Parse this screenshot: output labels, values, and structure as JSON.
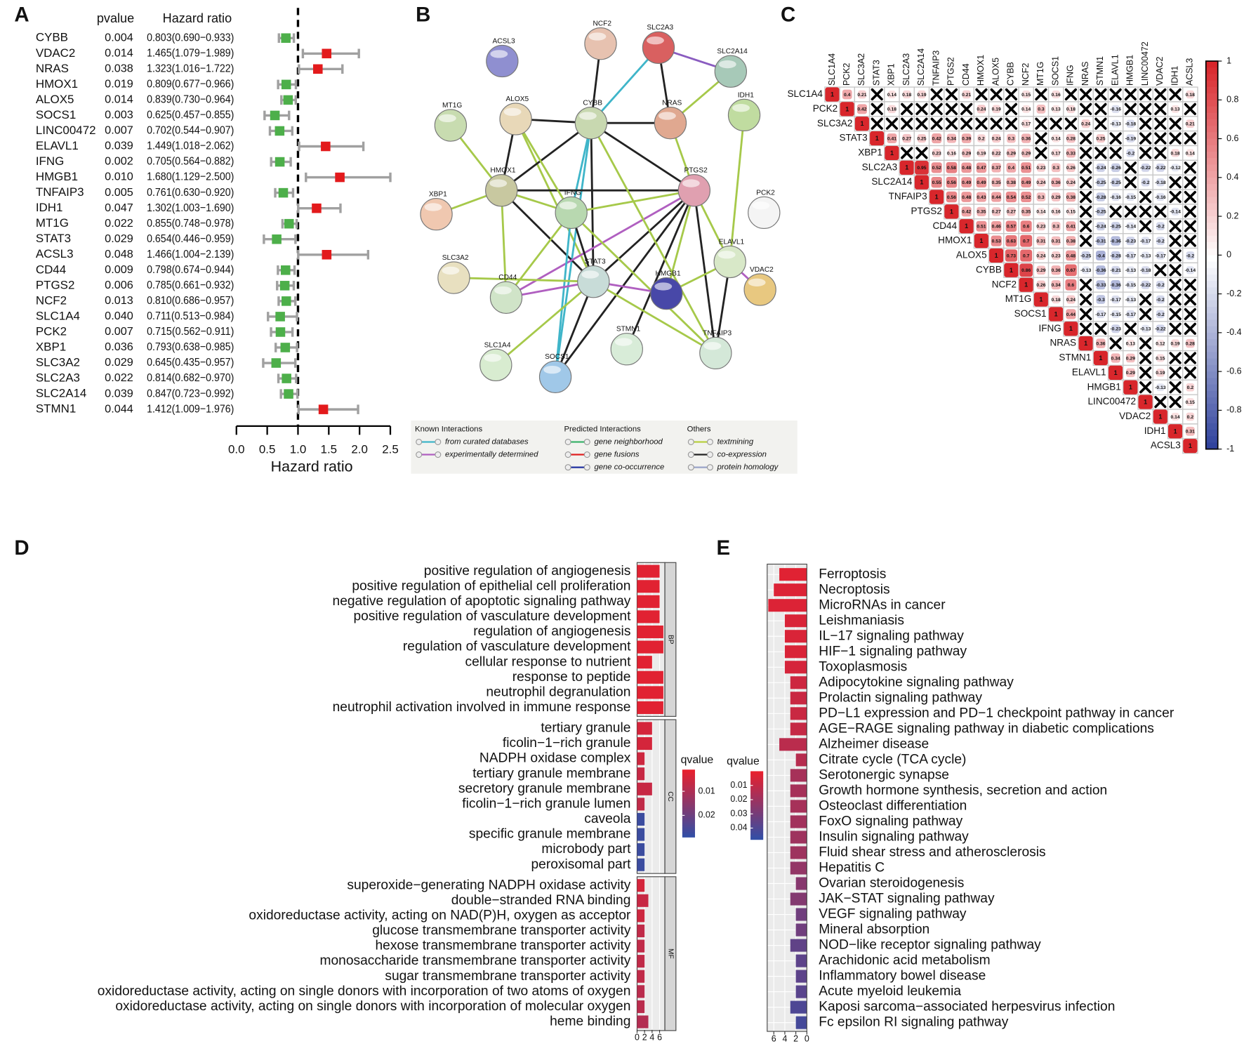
{
  "panels": [
    "A",
    "B",
    "C",
    "D",
    "E"
  ],
  "network": {
    "nodes": [
      "ACSL3",
      "NCF2",
      "SLC2A3",
      "SLC2A14",
      "MT1G",
      "ALOX5",
      "CYBB",
      "NRAS",
      "IDH1",
      "HMOX1",
      "PTGS2",
      "XBP1",
      "IFNG",
      "PCK2",
      "ELAVL1",
      "SLC3A2",
      "CD44",
      "STAT3",
      "HMGB1",
      "VDAC2",
      "STMN1",
      "TNFAIP3",
      "SLC1A4",
      "SOCS1"
    ],
    "legend": [
      {
        "title": "Known Interactions",
        "items": [
          "from curated databases",
          "experimentally determined"
        ]
      },
      {
        "title": "Predicted Interactions",
        "items": [
          "gene neighborhood",
          "gene fusions",
          "gene co-occurrence"
        ]
      },
      {
        "title": "Others",
        "items": [
          "textmining",
          "co-expression",
          "protein homology"
        ]
      }
    ]
  },
  "chart_data": [
    {
      "type": "forest",
      "columns": [
        "pvalue",
        "Hazard ratio"
      ],
      "genes": [
        "CYBB",
        "VDAC2",
        "NRAS",
        "HMOX1",
        "ALOX5",
        "SOCS1",
        "LINC00472",
        "ELAVL1",
        "IFNG",
        "HMGB1",
        "TNFAIP3",
        "IDH1",
        "MT1G",
        "STAT3",
        "ACSL3",
        "CD44",
        "PTGS2",
        "NCF2",
        "SLC1A4",
        "PCK2",
        "XBP1",
        "SLC3A2",
        "SLC2A3",
        "SLC2A14",
        "STMN1"
      ],
      "pvalues": [
        "0.004",
        "0.014",
        "0.038",
        "0.019",
        "0.014",
        "0.003",
        "0.007",
        "0.039",
        "0.002",
        "0.010",
        "0.005",
        "0.047",
        "0.022",
        "0.029",
        "0.048",
        "0.009",
        "0.006",
        "0.013",
        "0.040",
        "0.007",
        "0.036",
        "0.029",
        "0.022",
        "0.039",
        "0.044"
      ],
      "hr": [
        0.803,
        1.465,
        1.323,
        0.809,
        0.839,
        0.625,
        0.702,
        1.449,
        0.705,
        1.68,
        0.761,
        1.302,
        0.855,
        0.654,
        1.466,
        0.798,
        0.785,
        0.81,
        0.711,
        0.715,
        0.793,
        0.645,
        0.814,
        0.847,
        1.412
      ],
      "lower": [
        0.69,
        1.079,
        1.016,
        0.677,
        0.73,
        0.457,
        0.544,
        1.018,
        0.564,
        1.129,
        0.63,
        1.003,
        0.748,
        0.446,
        1.004,
        0.674,
        0.661,
        0.686,
        0.513,
        0.562,
        0.638,
        0.435,
        0.682,
        0.723,
        1.009
      ],
      "upper": [
        0.933,
        1.989,
        1.722,
        0.966,
        0.964,
        0.855,
        0.907,
        2.062,
        0.882,
        2.5,
        0.92,
        1.69,
        0.978,
        0.959,
        2.139,
        0.944,
        0.932,
        0.957,
        0.984,
        0.911,
        0.985,
        0.957,
        0.97,
        0.992,
        1.976
      ],
      "hr_labels": [
        "0.803(0.690−0.933)",
        "1.465(1.079−1.989)",
        "1.323(1.016−1.722)",
        "0.809(0.677−0.966)",
        "0.839(0.730−0.964)",
        "0.625(0.457−0.855)",
        "0.702(0.544−0.907)",
        "1.449(1.018−2.062)",
        "0.705(0.564−0.882)",
        "1.680(1.129−2.500)",
        "0.761(0.630−0.920)",
        "1.302(1.003−1.690)",
        "0.855(0.748−0.978)",
        "0.654(0.446−0.959)",
        "1.466(1.004−2.139)",
        "0.798(0.674−0.944)",
        "0.785(0.661−0.932)",
        "0.810(0.686−0.957)",
        "0.711(0.513−0.984)",
        "0.715(0.562−0.911)",
        "0.793(0.638−0.985)",
        "0.645(0.435−0.957)",
        "0.814(0.682−0.970)",
        "0.847(0.723−0.992)",
        "1.412(1.009−1.976)"
      ],
      "xlim": [
        0,
        2.5
      ],
      "xticks": [
        {
          "value": 0,
          "label": "0.0"
        },
        0.5,
        {
          "value": 1,
          "label": "1.0"
        },
        1.5,
        {
          "value": 2,
          "label": "2.0"
        },
        2.5
      ],
      "xlabel": "Hazard ratio",
      "reference": 1,
      "colors": {
        "above": "#e31a1c",
        "below": "#4daf4a",
        "whisker": "#a0a0a0"
      }
    },
    {
      "type": "heatmap",
      "labels": [
        "SLC1A4",
        "PCK2",
        "SLC3A2",
        "STAT3",
        "XBP1",
        "SLC2A3",
        "SLC2A14",
        "TNFAIP3",
        "PTGS2",
        "CD44",
        "HMOX1",
        "ALOX5",
        "CYBB",
        "NCF2",
        "MT1G",
        "SOCS1",
        "IFNG",
        "NRAS",
        "STMN1",
        "ELAVL1",
        "HMGB1",
        "LINC00472",
        "VDAC2",
        "IDH1",
        "ACSL3"
      ],
      "rows": [
        [
          1,
          0.4,
          0.21,
          null,
          0.14,
          0.18,
          0.19,
          null,
          null,
          0.21,
          null,
          null,
          null,
          0.15,
          null,
          0.16,
          null,
          null,
          null,
          null,
          null,
          null,
          null,
          null,
          0.18
        ],
        [
          1,
          0.42,
          null,
          0.18,
          null,
          null,
          null,
          null,
          null,
          0.24,
          0.19,
          null,
          0.14,
          0.3,
          0.13,
          0.18,
          null,
          null,
          -0.16,
          null,
          null,
          null,
          0.13,
          null
        ],
        [
          1,
          null,
          null,
          null,
          null,
          null,
          null,
          null,
          null,
          null,
          null,
          0.17,
          null,
          null,
          null,
          0.24,
          null,
          -0.13,
          -0.18,
          null,
          null,
          null,
          0.21
        ],
        [
          1,
          0.41,
          0.27,
          0.25,
          0.42,
          0.34,
          0.39,
          0.2,
          0.24,
          0.3,
          0.36,
          null,
          0.14,
          0.28,
          null,
          0.25,
          null,
          -0.19,
          null,
          null,
          null,
          null
        ],
        [
          1,
          null,
          null,
          0.23,
          0.16,
          0.29,
          0.19,
          0.22,
          0.29,
          0.29,
          null,
          0.17,
          0.33,
          null,
          null,
          null,
          -0.2,
          null,
          null,
          0.18,
          0.14
        ],
        [
          1,
          0.95,
          0.52,
          0.58,
          0.48,
          0.47,
          0.37,
          0.4,
          0.51,
          0.23,
          0.3,
          0.26,
          null,
          -0.24,
          -0.26,
          null,
          -0.22,
          -0.22,
          -0.12,
          null
        ],
        [
          1,
          0.55,
          0.56,
          0.49,
          0.49,
          0.35,
          0.38,
          0.49,
          0.24,
          0.36,
          0.24,
          null,
          -0.25,
          -0.25,
          null,
          -0.2,
          -0.18,
          null,
          null
        ],
        [
          1,
          0.56,
          0.48,
          0.43,
          0.44,
          0.54,
          0.52,
          0.3,
          0.29,
          0.38,
          null,
          -0.28,
          -0.16,
          -0.15,
          null,
          -0.16,
          null,
          null
        ],
        [
          1,
          0.42,
          0.35,
          0.27,
          0.27,
          0.35,
          0.14,
          0.16,
          0.15,
          null,
          -0.25,
          null,
          null,
          null,
          null,
          -0.14,
          null
        ],
        [
          1,
          0.51,
          0.46,
          0.57,
          0.6,
          0.23,
          0.3,
          0.41,
          null,
          -0.24,
          -0.25,
          -0.14,
          null,
          -0.2,
          null,
          null
        ],
        [
          1,
          0.53,
          0.63,
          0.7,
          0.31,
          0.31,
          0.38,
          null,
          -0.31,
          -0.36,
          -0.23,
          -0.17,
          -0.2,
          null,
          null
        ],
        [
          1,
          0.73,
          0.7,
          0.24,
          0.23,
          0.48,
          -0.25,
          -0.4,
          -0.28,
          -0.17,
          -0.13,
          -0.17,
          null,
          -0.2
        ],
        [
          1,
          0.86,
          0.29,
          0.36,
          0.67,
          -0.13,
          -0.36,
          -0.21,
          -0.13,
          -0.18,
          null,
          null,
          -0.14
        ],
        [
          1,
          0.26,
          0.34,
          0.6,
          null,
          -0.33,
          -0.36,
          -0.15,
          -0.22,
          -0.2,
          null,
          null
        ],
        [
          1,
          0.18,
          0.24,
          null,
          -0.3,
          -0.17,
          -0.13,
          null,
          -0.2,
          null,
          null
        ],
        [
          1,
          0.44,
          null,
          -0.17,
          -0.15,
          -0.17,
          null,
          -0.2,
          null,
          null
        ],
        [
          1,
          null,
          null,
          -0.23,
          null,
          -0.13,
          -0.22,
          null,
          null
        ],
        [
          1,
          0.36,
          null,
          0.13,
          null,
          0.12,
          0.19,
          0.28
        ],
        [
          1,
          0.34,
          0.29,
          null,
          0.15,
          null,
          null
        ],
        [
          1,
          0.29,
          null,
          0.19,
          null,
          null
        ],
        [
          1,
          null,
          -0.13,
          null,
          0.2
        ],
        [
          1,
          null,
          null,
          0.15
        ],
        [
          1,
          0.14,
          0.2
        ],
        [
          1,
          0.31
        ],
        [
          1
        ]
      ],
      "clim": [
        -1,
        1
      ],
      "cticks": [
        1,
        0.8,
        0.6,
        0.4,
        0.2,
        0,
        -0.2,
        -0.4,
        -0.6,
        -0.8,
        -1
      ],
      "colors": [
        "#2a3d9a",
        "#ffffff",
        "#d8262b"
      ]
    },
    {
      "type": "bar",
      "orientation": "horizontal",
      "facets": [
        {
          "name": "BP",
          "categories": [
            "positive regulation of angiogenesis",
            "positive regulation of epithelial cell proliferation",
            "negative regulation of apoptotic signaling pathway",
            "positive regulation of vasculature development",
            "regulation of angiogenesis",
            "regulation of vasculature development",
            "cellular response to nutrient",
            "response to peptide",
            "neutrophil degranulation",
            "neutrophil activation involved in immune response"
          ],
          "values": [
            6,
            6,
            6,
            6,
            7,
            7,
            4,
            7,
            7,
            7
          ],
          "qvalues": [
            0.002,
            0.002,
            0.002,
            0.002,
            0.002,
            0.002,
            0.002,
            0.002,
            0.002,
            0.002
          ]
        },
        {
          "name": "CC",
          "categories": [
            "tertiary granule",
            "ficolin−1−rich granule",
            "NADPH oxidase complex",
            "tertiary granule membrane",
            "secretory granule membrane",
            "ficolin−1−rich granule lumen",
            "caveola",
            "specific granule membrane",
            "microbody part",
            "peroxisomal part"
          ],
          "values": [
            4,
            4,
            2,
            2,
            4,
            2,
            2,
            2,
            2,
            2
          ],
          "qvalues": [
            0.004,
            0.004,
            0.005,
            0.006,
            0.006,
            0.007,
            0.027,
            0.027,
            0.027,
            0.027
          ]
        },
        {
          "name": "MF",
          "categories": [
            "superoxide−generating NADPH oxidase activity",
            "double−stranded RNA binding",
            "oxidoreductase activity, acting on NAD(P)H, oxygen as acceptor",
            "glucose transmembrane transporter activity",
            "hexose transmembrane transporter activity",
            "monosaccharide transmembrane transporter activity",
            "sugar transmembrane transporter activity",
            "oxidoreductase activity, acting on single donors with incorporation of two atoms of oxygen",
            "oxidoreductase activity, acting on single donors with incorporation of molecular oxygen",
            "heme binding"
          ],
          "values": [
            2,
            3,
            2,
            2,
            2,
            2,
            2,
            2,
            2,
            3
          ],
          "qvalues": [
            0.004,
            0.006,
            0.005,
            0.007,
            0.007,
            0.007,
            0.007,
            0.008,
            0.008,
            0.009
          ]
        }
      ],
      "xlim": [
        0,
        7.4
      ],
      "xticks": [
        0,
        2,
        4,
        6
      ],
      "colorbar": {
        "title": "qvalue",
        "lim": [
          0.001,
          0.029
        ],
        "ticks": [
          0.01,
          0.02
        ],
        "colors": [
          "#e8202e",
          "#2e4fa8"
        ]
      }
    },
    {
      "type": "bar",
      "orientation": "horizontal",
      "categories": [
        "Ferroptosis",
        "Necroptosis",
        "MicroRNAs in cancer",
        "Leishmaniasis",
        "IL−17 signaling pathway",
        "HIF−1 signaling pathway",
        "Toxoplasmosis",
        "Adipocytokine signaling pathway",
        "Prolactin signaling pathway",
        "PD−L1 expression and PD−1 checkpoint pathway in cancer",
        "AGE−RAGE signaling pathway in diabetic complications",
        "Alzheimer disease",
        "Citrate cycle (TCA cycle)",
        "Serotonergic synapse",
        "Growth hormone synthesis, secretion and action",
        "Osteoclast differentiation",
        "FoxO signaling pathway",
        "Insulin signaling pathway",
        "Fluid shear stress and atherosclerosis",
        "Hepatitis C",
        "Ovarian steroidogenesis",
        "JAK−STAT signaling pathway",
        "VEGF signaling pathway",
        "Mineral absorption",
        "NOD−like receptor signaling pathway",
        "Arachidonic acid metabolism",
        "Inflammatory bowel disease",
        "Acute myeloid leukemia",
        "Kaposi sarcoma−associated herpesvirus infection",
        "Fc epsilon RI signaling pathway"
      ],
      "values": [
        5,
        6,
        7,
        4,
        4,
        4,
        4,
        3,
        3,
        3,
        3,
        5,
        2,
        3,
        3,
        3,
        3,
        3,
        3,
        3,
        2,
        3,
        2,
        2,
        3,
        2,
        2,
        2,
        3,
        2
      ],
      "qvalues": [
        0.002,
        0.003,
        0.003,
        0.004,
        0.004,
        0.004,
        0.005,
        0.007,
        0.008,
        0.008,
        0.009,
        0.012,
        0.013,
        0.017,
        0.017,
        0.017,
        0.018,
        0.019,
        0.019,
        0.022,
        0.025,
        0.026,
        0.031,
        0.031,
        0.035,
        0.036,
        0.036,
        0.037,
        0.04,
        0.042
      ],
      "xlim": [
        7.2,
        0
      ],
      "xticks": [
        6,
        4,
        2,
        0
      ],
      "colorbar": {
        "title": "qvalue",
        "lim": [
          0,
          0.048
        ],
        "ticks": [
          0.01,
          0.02,
          0.03,
          0.04
        ],
        "colors": [
          "#e8202e",
          "#2e4fa8"
        ]
      }
    }
  ]
}
